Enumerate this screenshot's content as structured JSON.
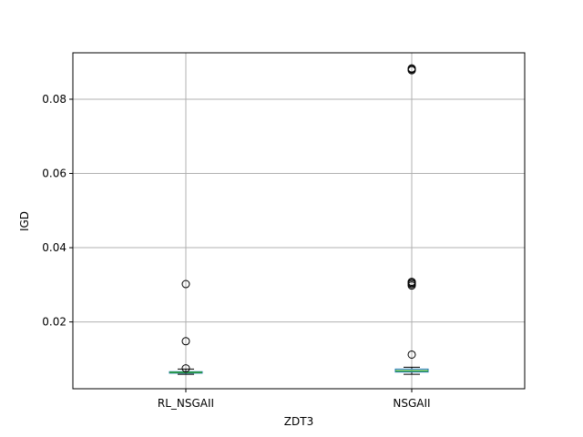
{
  "chart_data": {
    "type": "box",
    "title": "",
    "xlabel": "ZDT3",
    "ylabel": "IGD",
    "ylim": [
      0.002,
      0.0925
    ],
    "grid": true,
    "yticks": [
      0.02,
      0.04,
      0.06,
      0.08
    ],
    "ytick_labels": [
      "0.02",
      "0.04",
      "0.06",
      "0.08"
    ],
    "categories": [
      "RL_NSGAII",
      "NSGAII"
    ],
    "series": [
      {
        "category": "RL_NSGAII",
        "whisker_low": 0.0059,
        "q1": 0.0062,
        "median": 0.0064,
        "q3": 0.0066,
        "whisker_high": 0.0073,
        "outliers": [
          0.0075,
          0.0148,
          0.0302
        ]
      },
      {
        "category": "NSGAII",
        "whisker_low": 0.0059,
        "q1": 0.0065,
        "median": 0.0068,
        "q3": 0.0073,
        "whisker_high": 0.0078,
        "outliers": [
          0.0112,
          0.0298,
          0.0302,
          0.0305,
          0.0308,
          0.0878,
          0.0881,
          0.0883
        ]
      }
    ],
    "colors": {
      "box": "#1f77b4",
      "median": "#2ca02c",
      "whisker": "#000000",
      "grid": "#b0b0b0",
      "outlier_edge": "#000000"
    }
  }
}
